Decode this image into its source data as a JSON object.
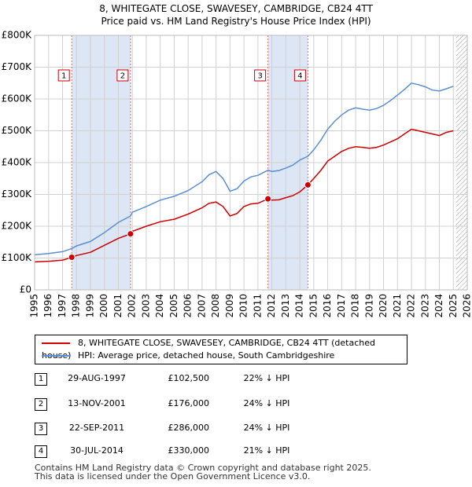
{
  "chart_data": {
    "type": "line",
    "title_line1": "8, WHITEGATE CLOSE, SWAVESEY, CAMBRIDGE, CB24 4TT",
    "title_line2": "Price paid vs. HM Land Registry's House Price Index (HPI)",
    "xlim": [
      1995,
      2026
    ],
    "ylim": [
      0,
      800000
    ],
    "x_ticks": [
      "1995",
      "1996",
      "1997",
      "1998",
      "1999",
      "2000",
      "2001",
      "2002",
      "2003",
      "2004",
      "2005",
      "2006",
      "2007",
      "2008",
      "2009",
      "2010",
      "2011",
      "2012",
      "2013",
      "2014",
      "2015",
      "2016",
      "2017",
      "2018",
      "2019",
      "2020",
      "2021",
      "2022",
      "2023",
      "2024",
      "2025",
      "2026"
    ],
    "y_ticks": [
      {
        "value": 0,
        "label": "£0"
      },
      {
        "value": 100000,
        "label": "£100K"
      },
      {
        "value": 200000,
        "label": "£200K"
      },
      {
        "value": 300000,
        "label": "£300K"
      },
      {
        "value": 400000,
        "label": "£400K"
      },
      {
        "value": 500000,
        "label": "£500K"
      },
      {
        "value": 600000,
        "label": "£600K"
      },
      {
        "value": 700000,
        "label": "£700K"
      },
      {
        "value": 800000,
        "label": "£800K"
      }
    ],
    "shaded_periods": [
      [
        1997.66,
        2001.87
      ],
      [
        2011.72,
        2014.58
      ]
    ],
    "hatched_from": 2025.2,
    "series": [
      {
        "name": "8, WHITEGATE CLOSE, SWAVESEY, CAMBRIDGE, CB24 4TT (detached house)",
        "color": "#cc0000",
        "points": [
          [
            1995,
            88000
          ],
          [
            1996,
            90000
          ],
          [
            1997,
            93000
          ],
          [
            1997.66,
            102500
          ],
          [
            1998,
            108000
          ],
          [
            1999,
            118000
          ],
          [
            2000,
            140000
          ],
          [
            2001,
            162000
          ],
          [
            2001.87,
            176000
          ],
          [
            2002,
            184000
          ],
          [
            2003,
            200000
          ],
          [
            2004,
            214000
          ],
          [
            2005,
            222000
          ],
          [
            2006,
            238000
          ],
          [
            2007,
            258000
          ],
          [
            2007.5,
            272000
          ],
          [
            2008,
            276000
          ],
          [
            2008.5,
            262000
          ],
          [
            2009,
            232000
          ],
          [
            2009.5,
            240000
          ],
          [
            2010,
            262000
          ],
          [
            2010.5,
            270000
          ],
          [
            2011,
            272000
          ],
          [
            2011.72,
            286000
          ],
          [
            2012,
            282000
          ],
          [
            2012.5,
            283000
          ],
          [
            2013,
            290000
          ],
          [
            2013.5,
            296000
          ],
          [
            2014,
            308000
          ],
          [
            2014.58,
            330000
          ],
          [
            2015,
            350000
          ],
          [
            2015.5,
            375000
          ],
          [
            2016,
            405000
          ],
          [
            2016.5,
            420000
          ],
          [
            2017,
            435000
          ],
          [
            2017.5,
            445000
          ],
          [
            2018,
            450000
          ],
          [
            2018.5,
            448000
          ],
          [
            2019,
            445000
          ],
          [
            2019.5,
            448000
          ],
          [
            2020,
            455000
          ],
          [
            2020.5,
            465000
          ],
          [
            2021,
            475000
          ],
          [
            2021.5,
            490000
          ],
          [
            2022,
            505000
          ],
          [
            2022.5,
            500000
          ],
          [
            2023,
            495000
          ],
          [
            2023.5,
            490000
          ],
          [
            2024,
            485000
          ],
          [
            2024.5,
            495000
          ],
          [
            2025,
            500000
          ]
        ]
      },
      {
        "name": "HPI: Average price, detached house, South Cambridgeshire",
        "color": "#5b8fd1",
        "points": [
          [
            1995,
            110000
          ],
          [
            1996,
            114000
          ],
          [
            1997,
            120000
          ],
          [
            1997.66,
            130000
          ],
          [
            1998,
            138000
          ],
          [
            1999,
            152000
          ],
          [
            2000,
            180000
          ],
          [
            2001,
            212000
          ],
          [
            2001.87,
            232000
          ],
          [
            2002,
            244000
          ],
          [
            2003,
            262000
          ],
          [
            2004,
            282000
          ],
          [
            2005,
            294000
          ],
          [
            2006,
            312000
          ],
          [
            2007,
            340000
          ],
          [
            2007.5,
            362000
          ],
          [
            2008,
            372000
          ],
          [
            2008.5,
            350000
          ],
          [
            2009,
            310000
          ],
          [
            2009.5,
            318000
          ],
          [
            2010,
            342000
          ],
          [
            2010.5,
            355000
          ],
          [
            2011,
            360000
          ],
          [
            2011.72,
            376000
          ],
          [
            2012,
            372000
          ],
          [
            2012.5,
            375000
          ],
          [
            2013,
            383000
          ],
          [
            2013.5,
            392000
          ],
          [
            2014,
            408000
          ],
          [
            2014.58,
            420000
          ],
          [
            2015,
            440000
          ],
          [
            2015.5,
            470000
          ],
          [
            2016,
            505000
          ],
          [
            2016.5,
            530000
          ],
          [
            2017,
            550000
          ],
          [
            2017.5,
            565000
          ],
          [
            2018,
            572000
          ],
          [
            2018.5,
            568000
          ],
          [
            2019,
            565000
          ],
          [
            2019.5,
            570000
          ],
          [
            2020,
            580000
          ],
          [
            2020.5,
            595000
          ],
          [
            2021,
            612000
          ],
          [
            2021.5,
            630000
          ],
          [
            2022,
            650000
          ],
          [
            2022.5,
            645000
          ],
          [
            2023,
            638000
          ],
          [
            2023.5,
            628000
          ],
          [
            2024,
            625000
          ],
          [
            2024.5,
            632000
          ],
          [
            2025,
            640000
          ]
        ]
      }
    ],
    "sales": [
      {
        "id": "1",
        "label": "1",
        "x": 1997.66,
        "price": 102500
      },
      {
        "id": "2",
        "label": "2",
        "x": 2001.87,
        "price": 176000
      },
      {
        "id": "3",
        "label": "3",
        "x": 2011.72,
        "price": 286000
      },
      {
        "id": "4",
        "label": "4",
        "x": 2014.58,
        "price": 330000
      }
    ]
  },
  "legend": {
    "property": "8, WHITEGATE CLOSE, SWAVESEY, CAMBRIDGE, CB24 4TT (detached house)",
    "hpi": "HPI: Average price, detached house, South Cambridgeshire",
    "property_color": "#cc0000",
    "hpi_color": "#5b8fd1"
  },
  "transactions": [
    {
      "num": "1",
      "date": "29-AUG-1997",
      "price": "£102,500",
      "hpi": "22% ↓ HPI"
    },
    {
      "num": "2",
      "date": "13-NOV-2001",
      "price": "£176,000",
      "hpi": "24% ↓ HPI"
    },
    {
      "num": "3",
      "date": "22-SEP-2011",
      "price": "£286,000",
      "hpi": "24% ↓ HPI"
    },
    {
      "num": "4",
      "date": "30-JUL-2014",
      "price": "£330,000",
      "hpi": "21% ↓ HPI"
    }
  ],
  "footer": {
    "line1": "Contains HM Land Registry data © Crown copyright and database right 2025.",
    "line2": "This data is licensed under the Open Government Licence v3.0."
  }
}
